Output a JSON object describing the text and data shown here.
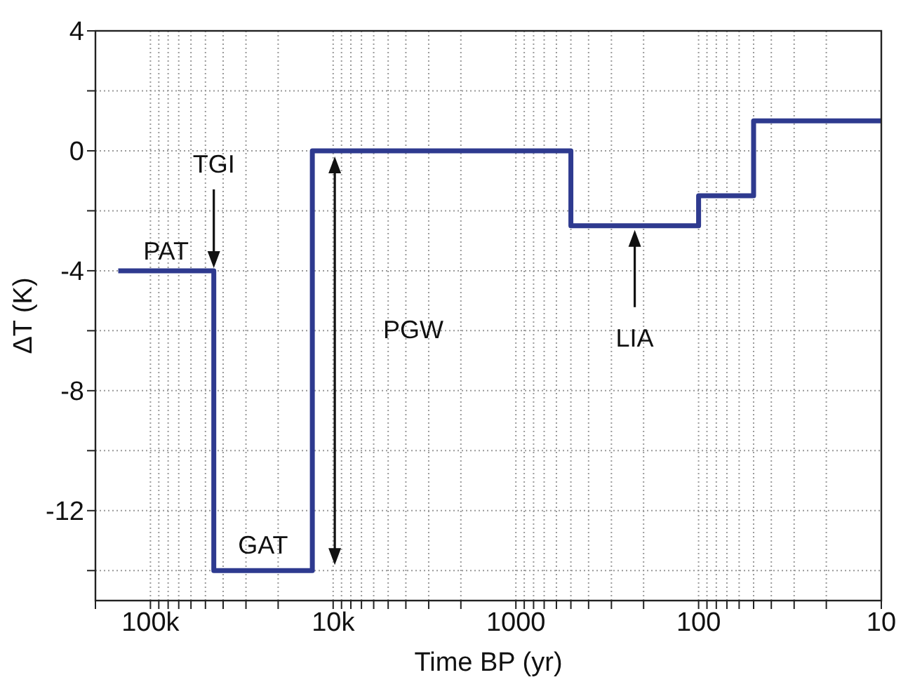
{
  "chart_data": {
    "type": "step",
    "xlabel": "Time BP (yr)",
    "ylabel": "ΔT (K)",
    "log": "x",
    "grid": true,
    "marker": "none",
    "line_style": "solid",
    "x": [
      150000,
      45000,
      13000,
      500,
      100,
      50,
      10
    ],
    "series": [
      {
        "color": "#2e3a8f",
        "values": [
          -4,
          -14,
          0,
          -2.5,
          -1.5,
          1,
          1
        ]
      }
    ],
    "xlim": [
      200000,
      10
    ],
    "xticks": [
      {
        "value": 100000,
        "label": "100k"
      },
      {
        "value": 10000,
        "label": "10k"
      },
      1000,
      100,
      10,
      {
        "value": 200000,
        "label": null
      },
      {
        "value": 90000,
        "label": null
      },
      {
        "value": 80000,
        "label": null
      },
      {
        "value": 70000,
        "label": null
      },
      {
        "value": 60000,
        "label": null
      },
      {
        "value": 50000,
        "label": null
      },
      {
        "value": 40000,
        "label": null
      },
      {
        "value": 30000,
        "label": null
      },
      {
        "value": 20000,
        "label": null
      },
      {
        "value": 9000,
        "label": null
      },
      {
        "value": 8000,
        "label": null
      },
      {
        "value": 7000,
        "label": null
      },
      {
        "value": 6000,
        "label": null
      },
      {
        "value": 5000,
        "label": null
      },
      {
        "value": 4000,
        "label": null
      },
      {
        "value": 3000,
        "label": null
      },
      {
        "value": 2000,
        "label": null
      },
      {
        "value": 900,
        "label": null
      },
      {
        "value": 800,
        "label": null
      },
      {
        "value": 700,
        "label": null
      },
      {
        "value": 600,
        "label": null
      },
      {
        "value": 500,
        "label": null
      },
      {
        "value": 400,
        "label": null
      },
      {
        "value": 300,
        "label": null
      },
      {
        "value": 200,
        "label": null
      },
      {
        "value": 90,
        "label": null
      },
      {
        "value": 80,
        "label": null
      },
      {
        "value": 70,
        "label": null
      },
      {
        "value": 60,
        "label": null
      },
      {
        "value": 50,
        "label": null
      },
      {
        "value": 40,
        "label": null
      },
      {
        "value": 30,
        "label": null
      },
      {
        "value": 20,
        "label": null
      }
    ],
    "ylim": [
      -15,
      4
    ],
    "yticks": [
      4,
      0,
      -4,
      -8,
      -12,
      {
        "value": 2,
        "label": null
      },
      {
        "value": -2,
        "label": null
      },
      {
        "value": -6,
        "label": null
      },
      {
        "value": -10,
        "label": null
      },
      {
        "value": -14,
        "label": null
      }
    ],
    "annotations": [
      "PAT",
      "TGI",
      "GAT",
      "PGW",
      "LIA"
    ]
  }
}
